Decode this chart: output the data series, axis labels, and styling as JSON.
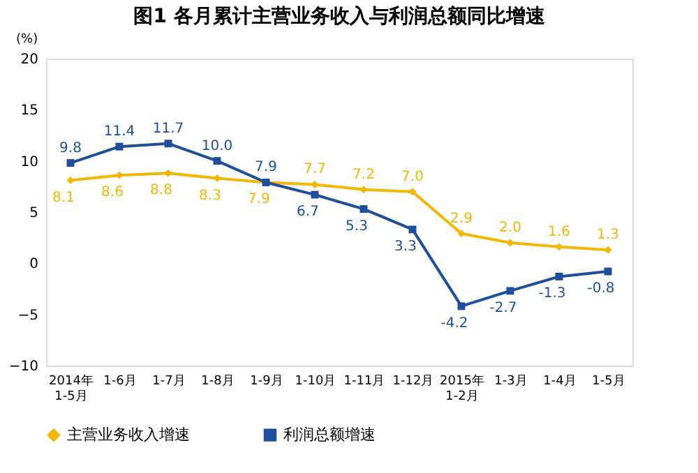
{
  "chart_data": {
    "type": "line",
    "title": "图1 各月累计主营业务收入与利润总额同比增速",
    "ylabel": "(%)",
    "categories": [
      "2014年\n1-5月",
      "1-6月",
      "1-7月",
      "1-8月",
      "1-9月",
      "1-10月",
      "1-11月",
      "1-12月",
      "2015年\n1-2月",
      "1-3月",
      "1-4月",
      "1-5月"
    ],
    "series": [
      {
        "name": "主营业务收入增速",
        "color": "#f2b705",
        "marker": "diamond",
        "values": [
          8.1,
          8.6,
          8.8,
          8.3,
          7.9,
          7.7,
          7.2,
          7.0,
          2.9,
          2.0,
          1.6,
          1.3
        ],
        "value_labels": [
          "8.1",
          "8.6",
          "8.8",
          "8.3",
          "7.9",
          "7.7",
          "7.2",
          "7.0",
          "2.9",
          "2.0",
          "1.6",
          "1.3"
        ]
      },
      {
        "name": "利润总额增速",
        "color": "#1f4e9c",
        "marker": "square",
        "values": [
          9.8,
          11.4,
          11.7,
          10.0,
          7.9,
          6.7,
          5.3,
          3.3,
          -4.2,
          -2.7,
          -1.3,
          -0.8
        ],
        "value_labels": [
          "9.8",
          "11.4",
          "11.7",
          "10.0",
          "7.9",
          "6.7",
          "5.3",
          "3.3",
          "-4.2",
          "-2.7",
          "-1.3",
          "-0.8"
        ]
      }
    ],
    "ylim": [
      -10,
      20
    ],
    "yticks": [
      -10,
      -5,
      0,
      5,
      10,
      15,
      20
    ],
    "grid": false,
    "legend": "bottom"
  }
}
